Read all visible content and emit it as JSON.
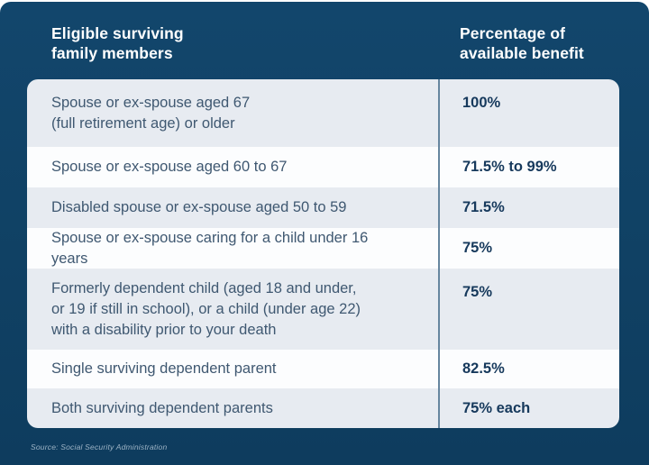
{
  "colors": {
    "panel_navy": "#104164",
    "row_light": "#e7ebf1",
    "row_white": "#fcfdfe",
    "divider_blue": "#66869f",
    "body_text": "#3f5871",
    "value_text": "#16395c",
    "header_text": "#ffffff",
    "source_text": "#9db3c5"
  },
  "header": {
    "left_title": "Eligible surviving\nfamily members",
    "right_title": "Percentage of\navailable benefit"
  },
  "table": {
    "rows": [
      {
        "member": "Spouse or ex-spouse aged 67\n(full retirement age) or older",
        "benefit": "100%"
      },
      {
        "member": "Spouse or ex-spouse aged 60 to 67",
        "benefit": "71.5% to 99%"
      },
      {
        "member": "Disabled spouse or ex-spouse aged 50 to 59",
        "benefit": "71.5%"
      },
      {
        "member": "Spouse or ex-spouse caring for a child under 16 years",
        "benefit": "75%"
      },
      {
        "member": "Formerly dependent child (aged 18 and under,\nor 19 if still in school), or a child (under age 22)\nwith a disability prior to your death",
        "benefit": "75%"
      },
      {
        "member": "Single surviving dependent parent",
        "benefit": "82.5%"
      },
      {
        "member": "Both surviving dependent parents",
        "benefit": "75% each"
      }
    ]
  },
  "footer": {
    "source": "Source: Social Security Administration"
  },
  "chart_data": {
    "type": "table",
    "title": "Survivor benefits by eligible family member",
    "columns": [
      "Eligible surviving family members",
      "Percentage of available benefit"
    ],
    "rows": [
      [
        "Spouse or ex-spouse aged 67 (full retirement age) or older",
        "100%"
      ],
      [
        "Spouse or ex-spouse aged 60 to 67",
        "71.5% to 99%"
      ],
      [
        "Disabled spouse or ex-spouse aged 50 to 59",
        "71.5%"
      ],
      [
        "Spouse or ex-spouse caring for a child under 16 years",
        "75%"
      ],
      [
        "Formerly dependent child (aged 18 and under, or 19 if still in school), or a child (under age 22) with a disability prior to your death",
        "75%"
      ],
      [
        "Single surviving dependent parent",
        "82.5%"
      ],
      [
        "Both surviving dependent parents",
        "75% each"
      ]
    ],
    "source": "Source: Social Security Administration"
  }
}
